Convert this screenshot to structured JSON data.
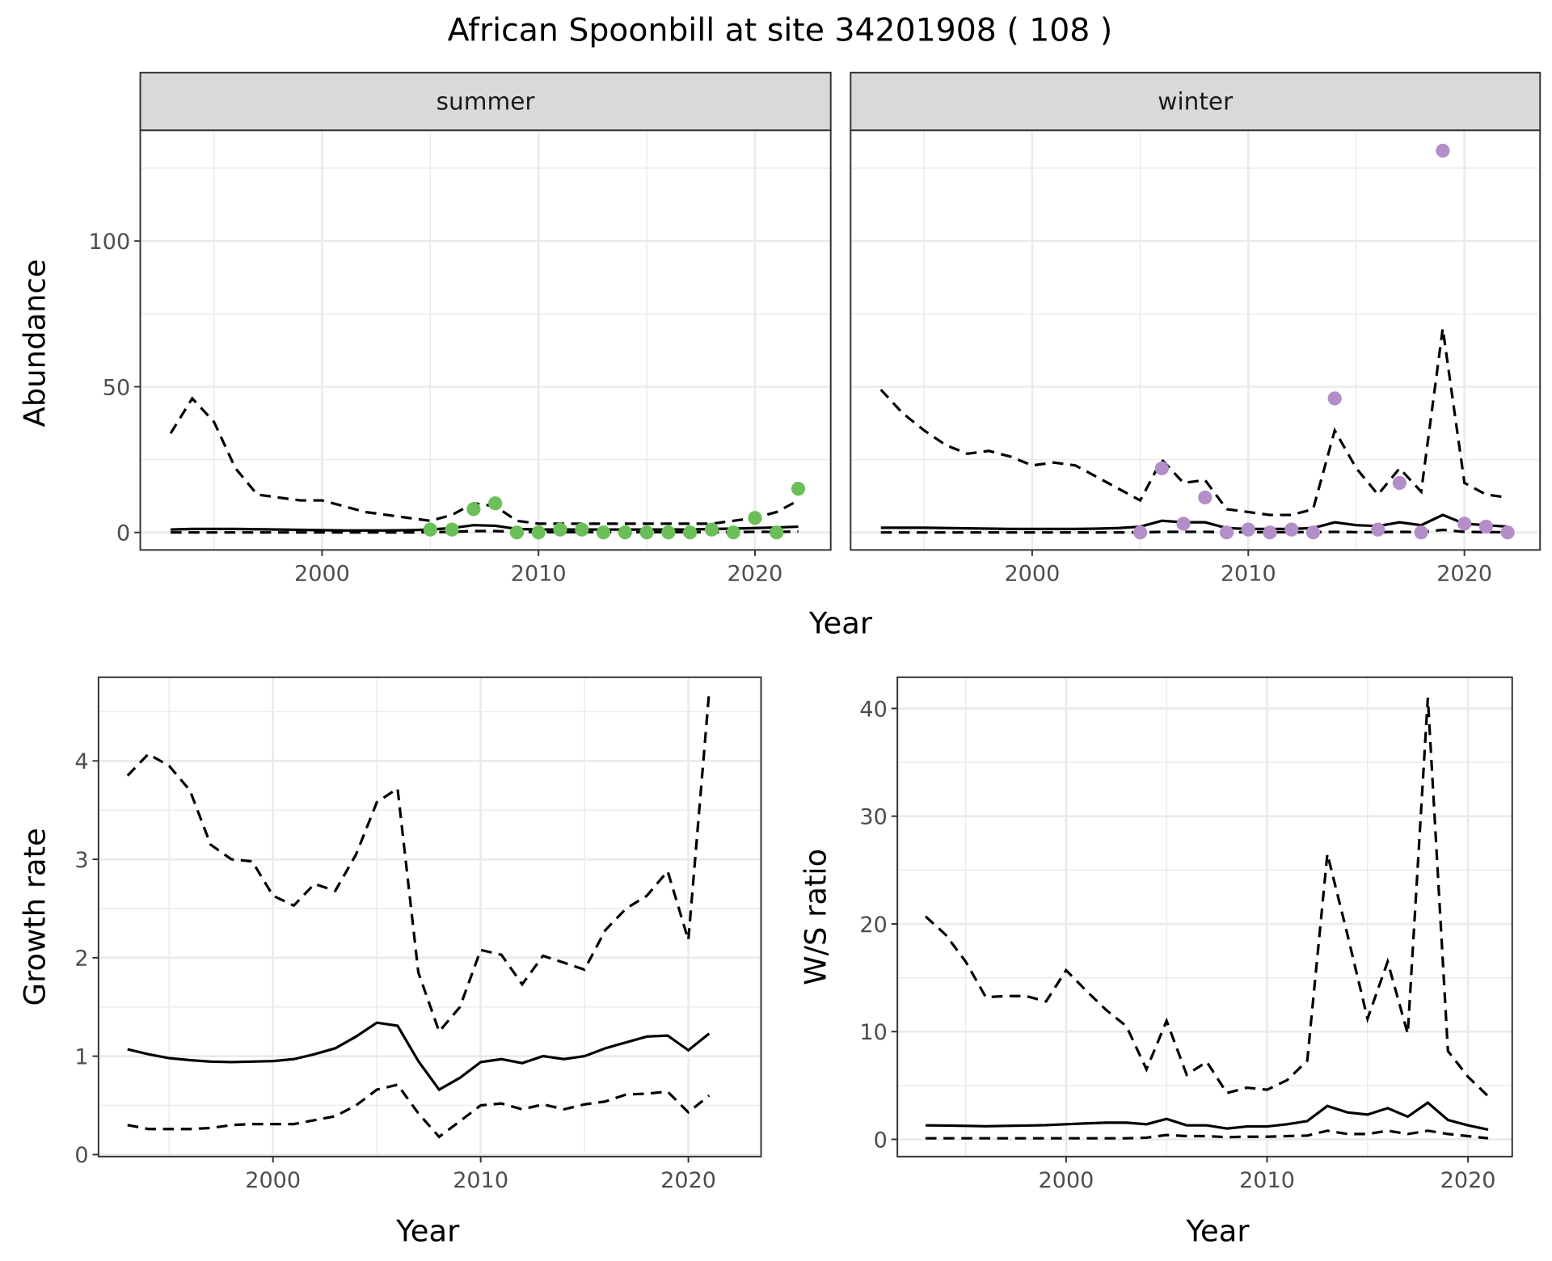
{
  "title": "African Spoonbill at site 34201908 ( 108 )",
  "colors": {
    "summer_points": "#6BBF59",
    "winter_points": "#B48EC8",
    "lines": "#000000",
    "grid": "#EBEBEB",
    "strip_bg": "#D9D9D9"
  },
  "chart_data": [
    {
      "type": "line+scatter",
      "strip": "summer",
      "xlabel": "Year",
      "ylabel": "Abundance",
      "xlim": [
        1991.6,
        2023.5
      ],
      "ylim": [
        -6,
        138
      ],
      "xticks": [
        2000,
        2010,
        2020
      ],
      "yticks": [
        0,
        50,
        100
      ],
      "grid": true,
      "years": [
        1993,
        1994,
        1995,
        1996,
        1997,
        1998,
        1999,
        2000,
        2001,
        2002,
        2003,
        2004,
        2005,
        2006,
        2007,
        2008,
        2009,
        2010,
        2011,
        2012,
        2013,
        2014,
        2015,
        2016,
        2017,
        2018,
        2019,
        2020,
        2021,
        2022
      ],
      "mean": [
        1,
        1.2,
        1.2,
        1.2,
        1.1,
        1,
        0.9,
        0.8,
        0.7,
        0.7,
        0.7,
        0.8,
        1,
        1.5,
        2.5,
        2.3,
        1.2,
        1,
        1,
        1,
        1,
        1,
        1,
        1,
        1,
        1.2,
        1.3,
        1.5,
        1.7,
        2
      ],
      "upper": [
        34,
        46,
        38,
        22,
        13,
        12,
        11,
        11,
        9,
        7,
        6,
        5,
        4,
        6,
        10,
        9,
        4,
        3,
        3,
        3,
        3,
        3,
        3,
        3,
        3,
        3,
        4,
        5,
        7,
        11
      ],
      "lower": [
        0,
        0,
        0,
        0,
        0,
        0,
        0,
        0,
        0,
        0,
        0,
        0,
        0.1,
        0.2,
        0.5,
        0.5,
        0.2,
        0.1,
        0.1,
        0.1,
        0.1,
        0.1,
        0.1,
        0.1,
        0.1,
        0.1,
        0.1,
        0.2,
        0.2,
        0.3
      ],
      "points": {
        "x": [
          2005,
          2006,
          2007,
          2008,
          2009,
          2010,
          2011,
          2012,
          2013,
          2014,
          2015,
          2016,
          2017,
          2018,
          2019,
          2020,
          2021,
          2022
        ],
        "y": [
          1,
          1,
          8,
          10,
          0,
          0,
          1,
          1,
          0,
          0,
          0,
          0,
          0,
          1,
          0,
          5,
          0,
          15
        ]
      }
    },
    {
      "type": "line+scatter",
      "strip": "winter",
      "xlabel": "Year",
      "ylabel": "Abundance",
      "xlim": [
        1991.6,
        2023.5
      ],
      "ylim": [
        -6,
        138
      ],
      "xticks": [
        2000,
        2010,
        2020
      ],
      "yticks": [
        0,
        50,
        100
      ],
      "grid": true,
      "years": [
        1993,
        1994,
        1995,
        1996,
        1997,
        1998,
        1999,
        2000,
        2001,
        2002,
        2003,
        2004,
        2005,
        2006,
        2007,
        2008,
        2009,
        2010,
        2011,
        2012,
        2013,
        2014,
        2015,
        2016,
        2017,
        2018,
        2019,
        2020,
        2021,
        2022
      ],
      "mean": [
        1.6,
        1.6,
        1.6,
        1.5,
        1.4,
        1.3,
        1.2,
        1.2,
        1.2,
        1.2,
        1.3,
        1.5,
        2,
        4,
        3.5,
        3.5,
        1.5,
        1.2,
        1.2,
        1.2,
        1.5,
        3.5,
        2.5,
        2.2,
        3.5,
        2.5,
        6,
        3,
        2.5,
        2
      ],
      "upper": [
        49,
        41,
        35,
        30,
        27,
        28,
        26,
        23,
        24,
        23,
        19,
        15,
        11,
        25,
        17,
        18,
        8,
        7,
        6,
        6,
        8,
        35,
        22,
        13,
        22,
        14,
        70,
        17,
        13,
        12
      ],
      "lower": [
        0,
        0,
        0,
        0,
        0,
        0,
        0,
        0,
        0,
        0,
        0,
        0,
        0,
        0.2,
        0.2,
        0.2,
        0.1,
        0.1,
        0.1,
        0.1,
        0.1,
        0.2,
        0.1,
        0.1,
        0.2,
        0.1,
        0.9,
        0.2,
        0.1,
        0.1
      ],
      "points": {
        "x": [
          2005,
          2006,
          2007,
          2008,
          2009,
          2010,
          2011,
          2012,
          2013,
          2014,
          2016,
          2017,
          2018,
          2019,
          2020,
          2021,
          2022
        ],
        "y": [
          0,
          22,
          3,
          12,
          0,
          1,
          0,
          1,
          0,
          46,
          1,
          17,
          0,
          131,
          3,
          2,
          0
        ]
      }
    },
    {
      "type": "line",
      "xlabel": "Year",
      "ylabel": "Growth rate",
      "xlim": [
        1991.6,
        2023.5
      ],
      "ylim": [
        -0.02,
        4.85
      ],
      "xticks": [
        2000,
        2010,
        2020
      ],
      "yticks": [
        0,
        1,
        2,
        3,
        4
      ],
      "grid": true,
      "years": [
        1993,
        1994,
        1995,
        1996,
        1997,
        1998,
        1999,
        2000,
        2001,
        2002,
        2003,
        2004,
        2005,
        2006,
        2007,
        2008,
        2009,
        2010,
        2011,
        2012,
        2013,
        2014,
        2015,
        2016,
        2017,
        2018,
        2019,
        2020,
        2021
      ],
      "mean": [
        1.07,
        1.02,
        0.98,
        0.96,
        0.945,
        0.94,
        0.945,
        0.95,
        0.97,
        1.02,
        1.08,
        1.2,
        1.34,
        1.31,
        0.95,
        0.66,
        0.78,
        0.94,
        0.97,
        0.93,
        1.0,
        0.97,
        1.0,
        1.08,
        1.14,
        1.2,
        1.21,
        1.06,
        1.23
      ],
      "upper": [
        3.85,
        4.07,
        3.95,
        3.7,
        3.15,
        3.0,
        2.98,
        2.63,
        2.53,
        2.75,
        2.68,
        3.05,
        3.58,
        3.72,
        1.85,
        1.25,
        1.5,
        2.08,
        2.03,
        1.73,
        2.02,
        1.95,
        1.88,
        2.28,
        2.5,
        2.63,
        2.88,
        2.18,
        4.7
      ],
      "lower": [
        0.3,
        0.26,
        0.26,
        0.26,
        0.27,
        0.3,
        0.31,
        0.31,
        0.31,
        0.35,
        0.39,
        0.5,
        0.66,
        0.71,
        0.42,
        0.18,
        0.34,
        0.5,
        0.52,
        0.46,
        0.51,
        0.46,
        0.51,
        0.54,
        0.61,
        0.62,
        0.64,
        0.43,
        0.6
      ]
    },
    {
      "type": "line",
      "xlabel": "Year",
      "ylabel": "W/S ratio",
      "xlim": [
        1991.6,
        2022.2
      ],
      "ylim": [
        -1.6,
        42.9
      ],
      "xticks": [
        2000,
        2010,
        2020
      ],
      "yticks": [
        0,
        10,
        20,
        30,
        40
      ],
      "grid": true,
      "years": [
        1993,
        1994,
        1995,
        1996,
        1997,
        1998,
        1999,
        2000,
        2001,
        2002,
        2003,
        2004,
        2005,
        2006,
        2007,
        2008,
        2009,
        2010,
        2011,
        2012,
        2013,
        2014,
        2015,
        2016,
        2017,
        2018,
        2019,
        2020,
        2021
      ],
      "mean": [
        1.3,
        1.28,
        1.25,
        1.22,
        1.25,
        1.28,
        1.32,
        1.4,
        1.48,
        1.55,
        1.55,
        1.4,
        1.9,
        1.3,
        1.3,
        1.0,
        1.2,
        1.2,
        1.4,
        1.7,
        3.1,
        2.5,
        2.3,
        2.9,
        2.1,
        3.4,
        1.8,
        1.3,
        0.9
      ],
      "upper": [
        20.7,
        19,
        16.5,
        13.2,
        13.3,
        13.3,
        12.8,
        15.7,
        13.8,
        12,
        10.5,
        6.5,
        11,
        6,
        7.2,
        4.3,
        4.8,
        4.6,
        5.5,
        7.3,
        26.5,
        19,
        11.2,
        16.5,
        9.8,
        41,
        8.2,
        5.8,
        4
      ],
      "lower": [
        0.1,
        0.1,
        0.1,
        0.1,
        0.1,
        0.1,
        0.1,
        0.1,
        0.1,
        0.1,
        0.1,
        0.15,
        0.4,
        0.3,
        0.3,
        0.2,
        0.25,
        0.25,
        0.3,
        0.35,
        0.8,
        0.5,
        0.5,
        0.8,
        0.5,
        0.8,
        0.5,
        0.3,
        0.1
      ]
    }
  ]
}
